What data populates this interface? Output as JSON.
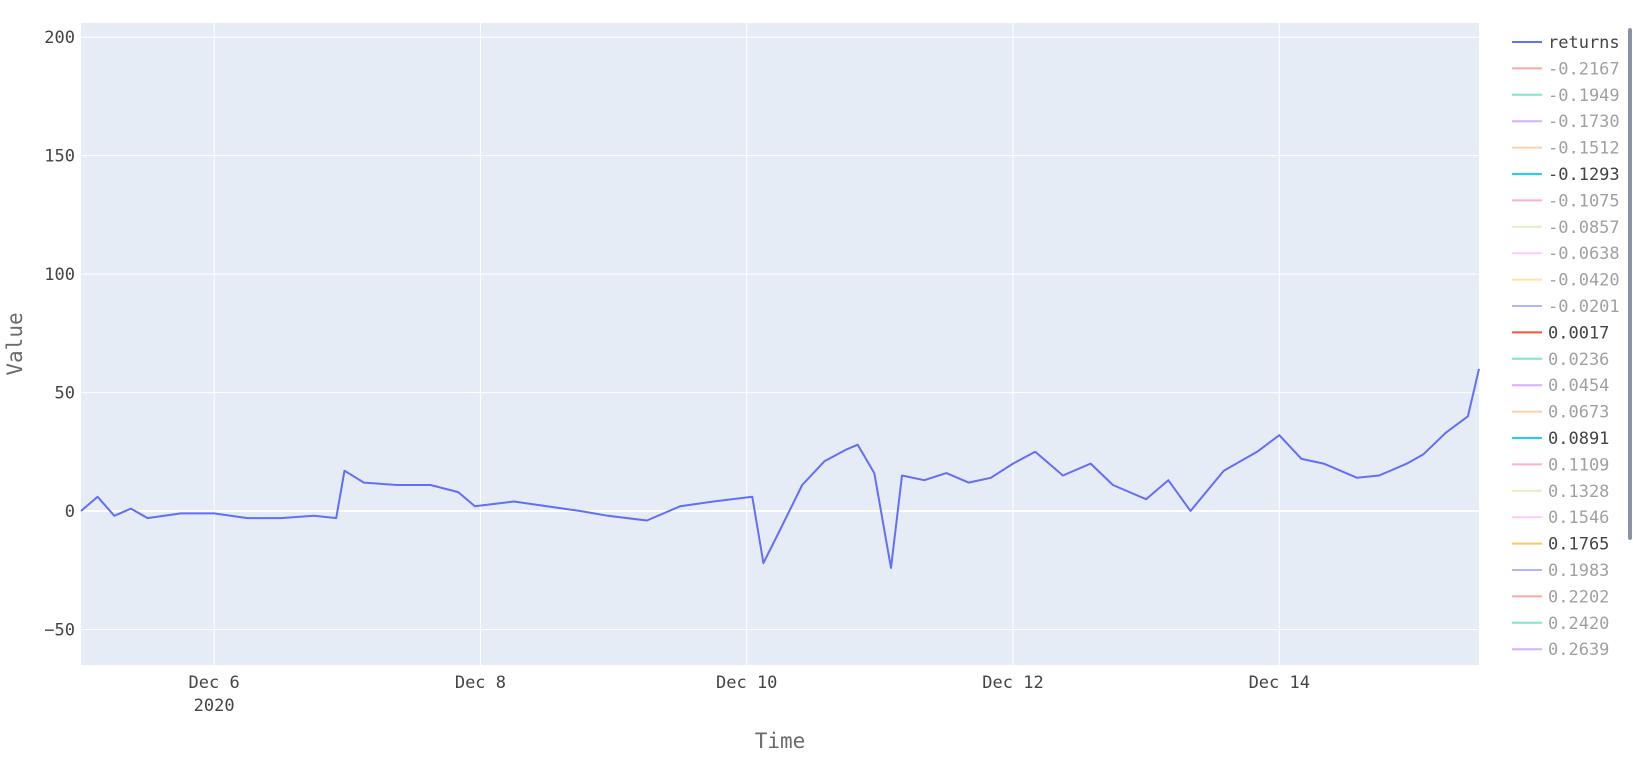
{
  "chart_data": {
    "type": "line",
    "xlabel": "Time",
    "ylabel": "Value",
    "x_axis": {
      "type": "date",
      "range": [
        "2020-12-05T00:00",
        "2020-12-15T12:00"
      ],
      "ticks": [
        {
          "date": "2020-12-06",
          "label": "Dec 6",
          "sublabel": "2020"
        },
        {
          "date": "2020-12-08",
          "label": "Dec 8"
        },
        {
          "date": "2020-12-10",
          "label": "Dec 10"
        },
        {
          "date": "2020-12-12",
          "label": "Dec 12"
        },
        {
          "date": "2020-12-14",
          "label": "Dec 14"
        }
      ]
    },
    "y_axis": {
      "range": [
        -65,
        206
      ],
      "ticks": [
        -50,
        0,
        50,
        100,
        150,
        200
      ]
    },
    "grid": true,
    "legend_position": "right",
    "plot_background": "#e5ecf6",
    "legend": [
      {
        "label": "returns",
        "color": "#636efa",
        "visible": true
      },
      {
        "label": "-0.2167",
        "color": "#ef553b",
        "visible": false
      },
      {
        "label": "-0.1949",
        "color": "#00cc96",
        "visible": false
      },
      {
        "label": "-0.1730",
        "color": "#ab63fa",
        "visible": false
      },
      {
        "label": "-0.1512",
        "color": "#ffa15a",
        "visible": false
      },
      {
        "label": "-0.1293",
        "color": "#19d3f3",
        "visible": true
      },
      {
        "label": "-0.1075",
        "color": "#ff6692",
        "visible": false
      },
      {
        "label": "-0.0857",
        "color": "#b6e880",
        "visible": false
      },
      {
        "label": "-0.0638",
        "color": "#ff97ff",
        "visible": false
      },
      {
        "label": "-0.0420",
        "color": "#fecb52",
        "visible": false
      },
      {
        "label": "-0.0201",
        "color": "#636efa",
        "visible": false
      },
      {
        "label": "0.0017",
        "color": "#ef553b",
        "visible": true
      },
      {
        "label": "0.0236",
        "color": "#00cc96",
        "visible": false
      },
      {
        "label": "0.0454",
        "color": "#ab63fa",
        "visible": false
      },
      {
        "label": "0.0673",
        "color": "#ffa15a",
        "visible": false
      },
      {
        "label": "0.0891",
        "color": "#19d3f3",
        "visible": true
      },
      {
        "label": "0.1109",
        "color": "#ff6692",
        "visible": false
      },
      {
        "label": "0.1328",
        "color": "#b6e880",
        "visible": false
      },
      {
        "label": "0.1546",
        "color": "#ff97ff",
        "visible": false
      },
      {
        "label": "0.1765",
        "color": "#fecb52",
        "visible": true
      },
      {
        "label": "0.1983",
        "color": "#636efa",
        "visible": false
      },
      {
        "label": "0.2202",
        "color": "#ef553b",
        "visible": false
      },
      {
        "label": "0.2420",
        "color": "#00cc96",
        "visible": false
      },
      {
        "label": "0.2639",
        "color": "#ab63fa",
        "visible": false
      }
    ],
    "series": [
      {
        "name": "returns",
        "color": "#636efa",
        "points": [
          [
            "2020-12-05T00:00",
            0
          ],
          [
            "2020-12-05T03:00",
            6
          ],
          [
            "2020-12-05T06:00",
            -2
          ],
          [
            "2020-12-05T09:00",
            1
          ],
          [
            "2020-12-05T12:00",
            -3
          ],
          [
            "2020-12-05T18:00",
            -1
          ],
          [
            "2020-12-06T00:00",
            -1
          ],
          [
            "2020-12-06T06:00",
            -3
          ],
          [
            "2020-12-06T12:00",
            -3
          ],
          [
            "2020-12-06T18:00",
            -2
          ],
          [
            "2020-12-06T22:00",
            -3
          ],
          [
            "2020-12-06T23:30",
            17
          ],
          [
            "2020-12-07T03:00",
            12
          ],
          [
            "2020-12-07T09:00",
            11
          ],
          [
            "2020-12-07T15:00",
            11
          ],
          [
            "2020-12-07T20:00",
            8
          ],
          [
            "2020-12-07T23:00",
            2
          ],
          [
            "2020-12-08T06:00",
            4
          ],
          [
            "2020-12-08T12:00",
            2
          ],
          [
            "2020-12-08T18:00",
            0
          ],
          [
            "2020-12-08T23:00",
            -2
          ],
          [
            "2020-12-09T06:00",
            -4
          ],
          [
            "2020-12-09T12:00",
            2
          ],
          [
            "2020-12-09T18:00",
            4
          ],
          [
            "2020-12-10T01:00",
            6
          ],
          [
            "2020-12-10T03:00",
            -22
          ],
          [
            "2020-12-10T06:00",
            -8
          ],
          [
            "2020-12-10T10:00",
            11
          ],
          [
            "2020-12-10T14:00",
            21
          ],
          [
            "2020-12-10T18:00",
            26
          ],
          [
            "2020-12-10T20:00",
            28
          ],
          [
            "2020-12-10T23:00",
            16
          ],
          [
            "2020-12-11T02:00",
            -24
          ],
          [
            "2020-12-11T04:00",
            15
          ],
          [
            "2020-12-11T08:00",
            13
          ],
          [
            "2020-12-11T12:00",
            16
          ],
          [
            "2020-12-11T16:00",
            12
          ],
          [
            "2020-12-11T20:00",
            14
          ],
          [
            "2020-12-12T00:00",
            20
          ],
          [
            "2020-12-12T04:00",
            25
          ],
          [
            "2020-12-12T09:00",
            15
          ],
          [
            "2020-12-12T14:00",
            20
          ],
          [
            "2020-12-12T18:00",
            11
          ],
          [
            "2020-12-13T00:00",
            5
          ],
          [
            "2020-12-13T04:00",
            13
          ],
          [
            "2020-12-13T08:00",
            0
          ],
          [
            "2020-12-13T14:00",
            17
          ],
          [
            "2020-12-13T20:00",
            25
          ],
          [
            "2020-12-14T00:00",
            32
          ],
          [
            "2020-12-14T04:00",
            22
          ],
          [
            "2020-12-14T08:00",
            20
          ],
          [
            "2020-12-14T14:00",
            14
          ],
          [
            "2020-12-14T18:00",
            15
          ],
          [
            "2020-12-14T23:00",
            20
          ],
          [
            "2020-12-15T02:00",
            24
          ],
          [
            "2020-12-15T06:00",
            33
          ],
          [
            "2020-12-15T10:00",
            40
          ],
          [
            "2020-12-15T12:00",
            60
          ]
        ]
      }
    ]
  }
}
